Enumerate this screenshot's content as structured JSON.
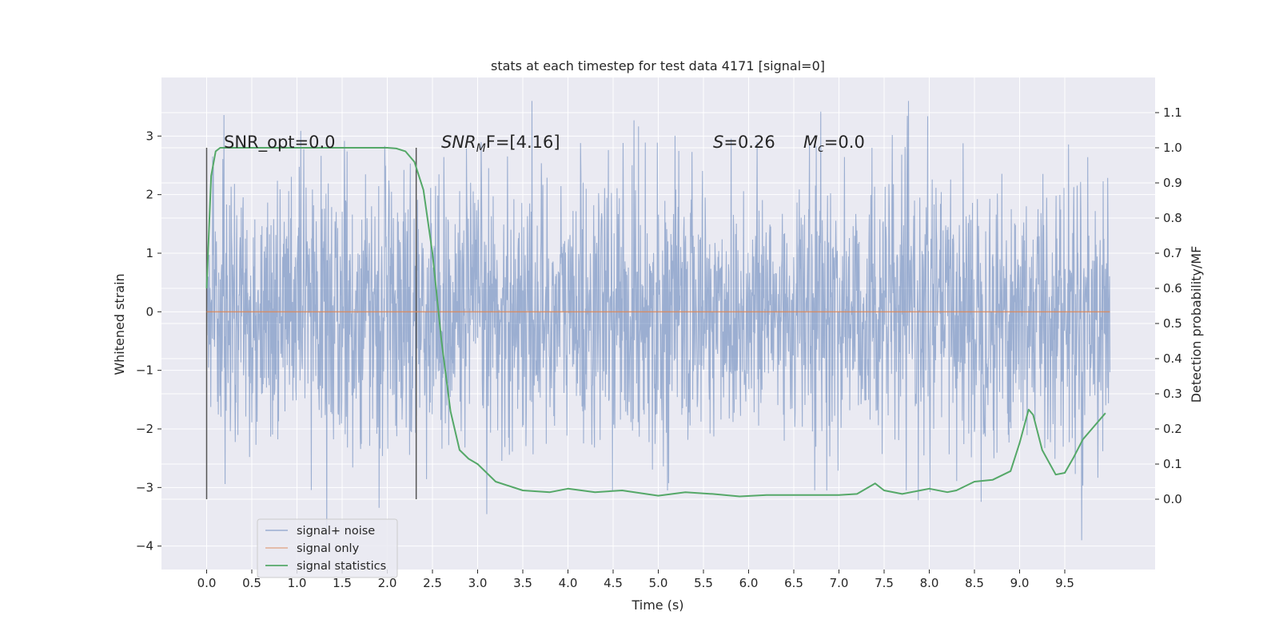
{
  "chart_data": {
    "type": "line",
    "title": "stats at each timestep for test data 4171 [signal=0]",
    "xlabel": "Time (s)",
    "ylabel": "Whitened strain",
    "ylabel_right": "Detection probability/MF",
    "xlim": [
      -0.5,
      10.5
    ],
    "ylim": [
      -4.4,
      4.0
    ],
    "ylim_right": [
      -0.2,
      1.2
    ],
    "x_ticks": [
      "0.0",
      "0.5",
      "1.0",
      "1.5",
      "2.0",
      "2.5",
      "3.0",
      "3.5",
      "4.0",
      "4.5",
      "5.0",
      "5.5",
      "6.0",
      "6.5",
      "7.0",
      "7.5",
      "8.0",
      "8.5",
      "9.0",
      "9.5"
    ],
    "y_ticks": [
      "3",
      "2",
      "1",
      "0",
      "−1",
      "−2",
      "−3",
      "−4"
    ],
    "y_ticks_right": [
      "1.1",
      "1.0",
      "0.9",
      "0.8",
      "0.7",
      "0.6",
      "0.5",
      "0.4",
      "0.3",
      "0.2",
      "0.1",
      "0.0"
    ],
    "grid": true,
    "legend_position": "lower-left",
    "annotations": {
      "snr_opt": "SNR_opt=0.0",
      "snr_mf_main": "SNR",
      "snr_mf_sub": "M",
      "snr_mf_rest": "F=[4.16]",
      "s_var": "S",
      "s_rest": "=0.26",
      "mc_var": "M",
      "mc_sub": "c",
      "mc_rest": "=0.0"
    },
    "vertical_markers": [
      0.0,
      2.32
    ],
    "series": [
      {
        "name": "signal+ noise",
        "color": "#4c72b0",
        "x_range": [
          0.0,
          10.0
        ],
        "envelope": "noise, typical |y| up to ~3.5, extremes 3.6 and -3.9"
      },
      {
        "name": "signal only",
        "color": "#dd8452",
        "x": [
          0.0,
          10.0
        ],
        "values": [
          0.0,
          0.0
        ]
      },
      {
        "name": "signal statistics",
        "color": "#55a868",
        "axis": "right",
        "x": [
          0.0,
          0.05,
          0.1,
          0.15,
          0.25,
          0.5,
          1.0,
          1.5,
          2.0,
          2.1,
          2.2,
          2.3,
          2.4,
          2.5,
          2.6,
          2.7,
          2.8,
          2.9,
          3.0,
          3.2,
          3.5,
          3.8,
          4.0,
          4.3,
          4.6,
          5.0,
          5.3,
          5.6,
          5.9,
          6.2,
          6.6,
          7.0,
          7.2,
          7.4,
          7.5,
          7.7,
          7.9,
          8.0,
          8.2,
          8.3,
          8.5,
          8.7,
          8.9,
          9.0,
          9.1,
          9.15,
          9.25,
          9.4,
          9.5,
          9.6,
          9.7,
          9.8,
          9.95
        ],
        "values": [
          0.6,
          0.92,
          0.99,
          1.0,
          1.0,
          1.0,
          1.0,
          1.0,
          1.0,
          0.998,
          0.99,
          0.96,
          0.88,
          0.7,
          0.45,
          0.25,
          0.14,
          0.115,
          0.1,
          0.05,
          0.025,
          0.02,
          0.03,
          0.02,
          0.025,
          0.01,
          0.02,
          0.015,
          0.008,
          0.012,
          0.012,
          0.012,
          0.015,
          0.045,
          0.025,
          0.015,
          0.025,
          0.03,
          0.02,
          0.025,
          0.05,
          0.055,
          0.08,
          0.16,
          0.255,
          0.24,
          0.14,
          0.07,
          0.075,
          0.12,
          0.17,
          0.2,
          0.245
        ]
      }
    ]
  }
}
